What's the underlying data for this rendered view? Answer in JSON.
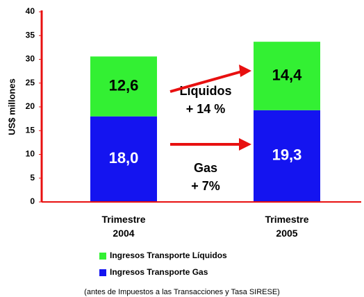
{
  "chart_data": {
    "type": "stacked_bar",
    "ylabel": "US$ millones",
    "categories": [
      "Trimestre 2004",
      "Trimestre 2005"
    ],
    "series": [
      {
        "name": "Ingresos Transporte Gas",
        "color": "#1414f0",
        "values": [
          18.0,
          19.3
        ],
        "value_labels": [
          "18,0",
          "19,3"
        ],
        "label_color": "#ffffff"
      },
      {
        "name": "Ingresos Transporte Líquidos",
        "color": "#33f033",
        "values": [
          12.6,
          14.4
        ],
        "value_labels": [
          "12,6",
          "14,4"
        ],
        "label_color": "#000000"
      }
    ],
    "ylim": [
      0,
      40
    ],
    "yticks": [
      0,
      5,
      10,
      15,
      20,
      25,
      30,
      35,
      40
    ],
    "axis_color": "#e81010",
    "annotations": [
      "Líquidos",
      "+ 14 %",
      "Gas",
      "+ 7%"
    ],
    "note": "(antes de Impuestos a las Transacciones y Tasa SIRESE)"
  }
}
